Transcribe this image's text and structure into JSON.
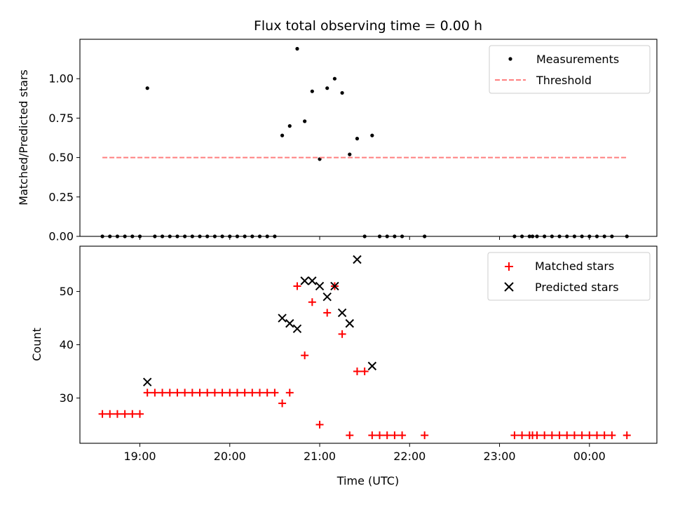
{
  "chart_data": {
    "type": "scatter",
    "title": "Flux total observing time = 0.00 h",
    "xlabel": "Time (UTC)",
    "xlim": [
      "18:20",
      "00:45"
    ],
    "x_ticks": [
      "19:00",
      "20:00",
      "21:00",
      "22:00",
      "23:00",
      "00:00"
    ],
    "panels": [
      {
        "ylabel": "Matched/Predicted stars",
        "ylim": [
          0,
          1.25
        ],
        "y_ticks": [
          "0.00",
          "0.25",
          "0.50",
          "0.75",
          "1.00"
        ],
        "legend_placement": "top-right",
        "series": [
          {
            "name": "Measurements",
            "marker": "dot",
            "color": "#000000",
            "points": [
              [
                "18:35",
                0.0
              ],
              [
                "18:40",
                0.0
              ],
              [
                "18:45",
                0.0
              ],
              [
                "18:50",
                0.0
              ],
              [
                "18:55",
                0.0
              ],
              [
                "19:00",
                0.0
              ],
              [
                "19:05",
                0.94
              ],
              [
                "19:10",
                0.0
              ],
              [
                "19:15",
                0.0
              ],
              [
                "19:20",
                0.0
              ],
              [
                "19:25",
                0.0
              ],
              [
                "19:30",
                0.0
              ],
              [
                "19:35",
                0.0
              ],
              [
                "19:40",
                0.0
              ],
              [
                "19:45",
                0.0
              ],
              [
                "19:50",
                0.0
              ],
              [
                "19:55",
                0.0
              ],
              [
                "20:00",
                0.0
              ],
              [
                "20:05",
                0.0
              ],
              [
                "20:10",
                0.0
              ],
              [
                "20:15",
                0.0
              ],
              [
                "20:20",
                0.0
              ],
              [
                "20:25",
                0.0
              ],
              [
                "20:30",
                0.0
              ],
              [
                "20:35",
                0.64
              ],
              [
                "20:40",
                0.7
              ],
              [
                "20:45",
                1.19
              ],
              [
                "20:50",
                0.73
              ],
              [
                "20:55",
                0.92
              ],
              [
                "21:00",
                0.49
              ],
              [
                "21:05",
                0.94
              ],
              [
                "21:10",
                1.0
              ],
              [
                "21:15",
                0.91
              ],
              [
                "21:20",
                0.52
              ],
              [
                "21:25",
                0.62
              ],
              [
                "21:30",
                0.0
              ],
              [
                "21:35",
                0.64
              ],
              [
                "21:40",
                0.0
              ],
              [
                "21:45",
                0.0
              ],
              [
                "21:50",
                0.0
              ],
              [
                "21:55",
                0.0
              ],
              [
                "22:10",
                0.0
              ],
              [
                "23:10",
                0.0
              ],
              [
                "23:15",
                0.0
              ],
              [
                "23:20",
                0.0
              ],
              [
                "23:22",
                0.0
              ],
              [
                "23:25",
                0.0
              ],
              [
                "23:30",
                0.0
              ],
              [
                "23:35",
                0.0
              ],
              [
                "23:40",
                0.0
              ],
              [
                "23:45",
                0.0
              ],
              [
                "23:50",
                0.0
              ],
              [
                "23:55",
                0.0
              ],
              [
                "00:00",
                0.0
              ],
              [
                "00:05",
                0.0
              ],
              [
                "00:10",
                0.0
              ],
              [
                "00:15",
                0.0
              ],
              [
                "00:25",
                0.0
              ]
            ]
          },
          {
            "name": "Threshold",
            "marker": "dashed-line",
            "color": "#ff7f7f",
            "points": [
              [
                "18:35",
                0.5
              ],
              [
                "00:25",
                0.5
              ]
            ]
          }
        ]
      },
      {
        "ylabel": "Count",
        "ylim": [
          21.5,
          58.5
        ],
        "y_ticks": [
          "30",
          "40",
          "50"
        ],
        "legend_placement": "top-right",
        "series": [
          {
            "name": "Matched stars",
            "marker": "plus",
            "color": "#ff0000",
            "points": [
              [
                "18:35",
                27
              ],
              [
                "18:40",
                27
              ],
              [
                "18:45",
                27
              ],
              [
                "18:50",
                27
              ],
              [
                "18:55",
                27
              ],
              [
                "19:00",
                27
              ],
              [
                "19:05",
                31
              ],
              [
                "19:10",
                31
              ],
              [
                "19:15",
                31
              ],
              [
                "19:20",
                31
              ],
              [
                "19:25",
                31
              ],
              [
                "19:30",
                31
              ],
              [
                "19:35",
                31
              ],
              [
                "19:40",
                31
              ],
              [
                "19:45",
                31
              ],
              [
                "19:50",
                31
              ],
              [
                "19:55",
                31
              ],
              [
                "20:00",
                31
              ],
              [
                "20:05",
                31
              ],
              [
                "20:10",
                31
              ],
              [
                "20:15",
                31
              ],
              [
                "20:20",
                31
              ],
              [
                "20:25",
                31
              ],
              [
                "20:30",
                31
              ],
              [
                "20:35",
                29
              ],
              [
                "20:40",
                31
              ],
              [
                "20:45",
                51
              ],
              [
                "20:50",
                38
              ],
              [
                "20:55",
                48
              ],
              [
                "21:00",
                25
              ],
              [
                "21:05",
                46
              ],
              [
                "21:10",
                51
              ],
              [
                "21:15",
                42
              ],
              [
                "21:20",
                23
              ],
              [
                "21:25",
                35
              ],
              [
                "21:30",
                35
              ],
              [
                "21:35",
                23
              ],
              [
                "21:40",
                23
              ],
              [
                "21:45",
                23
              ],
              [
                "21:50",
                23
              ],
              [
                "21:55",
                23
              ],
              [
                "22:10",
                23
              ],
              [
                "23:10",
                23
              ],
              [
                "23:15",
                23
              ],
              [
                "23:20",
                23
              ],
              [
                "23:22",
                23
              ],
              [
                "23:25",
                23
              ],
              [
                "23:30",
                23
              ],
              [
                "23:35",
                23
              ],
              [
                "23:40",
                23
              ],
              [
                "23:45",
                23
              ],
              [
                "23:50",
                23
              ],
              [
                "23:55",
                23
              ],
              [
                "00:00",
                23
              ],
              [
                "00:05",
                23
              ],
              [
                "00:10",
                23
              ],
              [
                "00:15",
                23
              ],
              [
                "00:25",
                23
              ]
            ]
          },
          {
            "name": "Predicted stars",
            "marker": "x",
            "color": "#000000",
            "points": [
              [
                "19:05",
                33
              ],
              [
                "20:35",
                45
              ],
              [
                "20:40",
                44
              ],
              [
                "20:45",
                43
              ],
              [
                "20:50",
                52
              ],
              [
                "20:55",
                52
              ],
              [
                "21:00",
                51
              ],
              [
                "21:05",
                49
              ],
              [
                "21:10",
                51
              ],
              [
                "21:15",
                46
              ],
              [
                "21:20",
                44
              ],
              [
                "21:25",
                56
              ],
              [
                "21:35",
                36
              ]
            ]
          }
        ]
      }
    ]
  }
}
